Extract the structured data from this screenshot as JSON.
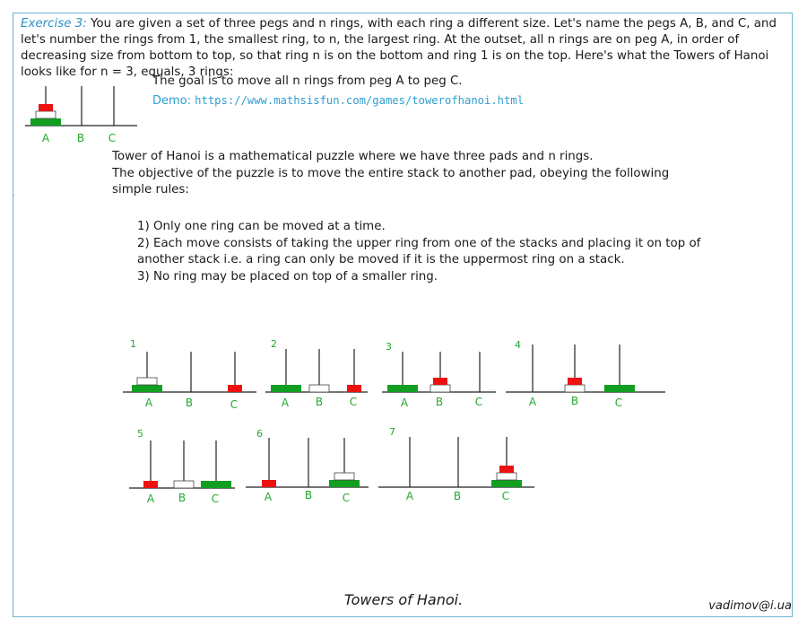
{
  "intro": {
    "label": "Exercise 3:",
    "text": "You are given a set of three pegs and n rings, with each ring a different size. Let's name the pegs A, B, and C, and let's number the rings from 1, the smallest ring, to n, the largest ring. At the outset, all n rings are on peg A, in order of decreasing size from bottom to top, so that ring n is on the bottom and ring 1 is on the top. Here's what the Towers of Hanoi looks like for n = 3, equals, 3 rings:"
  },
  "goal": "The goal is to move all n rings from peg A to peg C.",
  "demo": {
    "label": "Demo:",
    "url": "https://www.mathsisfun.com/games/towerofhanoi.html"
  },
  "description": {
    "line1": "Tower of Hanoi is a mathematical puzzle where we have three pads and n rings.",
    "line2": "The objective of the puzzle is to move the entire stack to another pad, obeying the following simple rules:"
  },
  "rules": [
    "1) Only one ring can be moved at a time.",
    "2) Each move consists of taking the upper ring from one of the stacks and placing it on top of another stack i.e. a ring can only be moved if it is the uppermost ring on a stack.",
    "3) No ring may be placed on top of a smaller ring."
  ],
  "steps": [
    "1",
    "2",
    "3",
    "4",
    "5",
    "6",
    "7"
  ],
  "peg_labels": [
    "A",
    "B",
    "C"
  ],
  "caption": "Towers of Hanoi.",
  "author": "vadimov@i.ua",
  "colors": {
    "large": "#119f22",
    "medium": "#ffffff",
    "small": "#ee1111",
    "accent": "#2e8fc9",
    "label": "#22a830"
  }
}
